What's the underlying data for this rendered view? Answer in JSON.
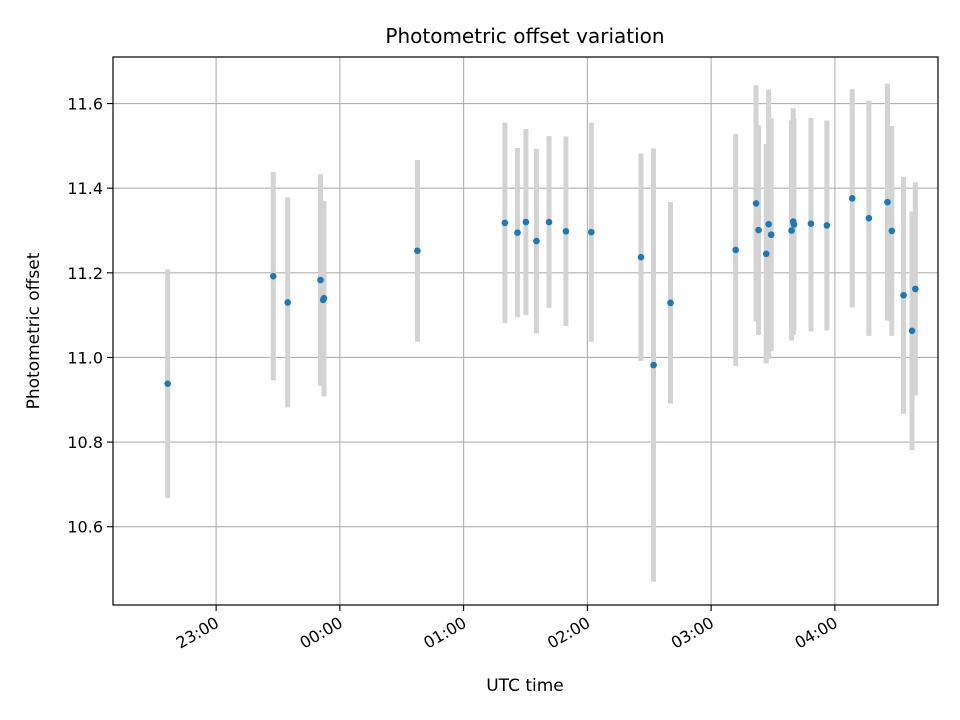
{
  "chart_data": {
    "type": "scatter",
    "title": "Photometric offset variation",
    "xlabel": "UTC time",
    "ylabel": "Photometric offset",
    "x_unit": "minutes since 00:00 UTC",
    "xlim": [
      -110,
      290
    ],
    "ylim": [
      10.415,
      11.71
    ],
    "grid": true,
    "x_ticks": [
      {
        "value": -60,
        "label": "23:00"
      },
      {
        "value": 0,
        "label": "00:00"
      },
      {
        "value": 60,
        "label": "01:00"
      },
      {
        "value": 120,
        "label": "02:00"
      },
      {
        "value": 180,
        "label": "03:00"
      },
      {
        "value": 240,
        "label": "04:00"
      }
    ],
    "y_ticks": [
      {
        "value": 10.6,
        "label": "10.6"
      },
      {
        "value": 10.8,
        "label": "10.8"
      },
      {
        "value": 11.0,
        "label": "11.0"
      },
      {
        "value": 11.2,
        "label": "11.2"
      },
      {
        "value": 11.4,
        "label": "11.4"
      },
      {
        "value": 11.6,
        "label": "11.6"
      }
    ],
    "colors": {
      "point": "#1f77b4",
      "errorbar": "#d3d3d3",
      "grid": "#b0b0b0",
      "axis": "#000000"
    },
    "points": [
      {
        "x": -83.5,
        "y": 10.938,
        "lo": 10.668,
        "hi": 11.208
      },
      {
        "x": -32.3,
        "y": 11.192,
        "lo": 10.946,
        "hi": 11.438
      },
      {
        "x": -25.3,
        "y": 11.13,
        "lo": 10.882,
        "hi": 11.378
      },
      {
        "x": -9.4,
        "y": 11.183,
        "lo": 10.933,
        "hi": 11.433
      },
      {
        "x": -7.7,
        "y": 11.14,
        "lo": 10.908,
        "hi": 11.37
      },
      {
        "x": -8.1,
        "y": 11.136,
        "lo": 10.936,
        "hi": 11.336
      },
      {
        "x": 37.6,
        "y": 11.252,
        "lo": 11.037,
        "hi": 11.467
      },
      {
        "x": 80.0,
        "y": 11.318,
        "lo": 11.081,
        "hi": 11.555
      },
      {
        "x": 86.1,
        "y": 11.295,
        "lo": 11.095,
        "hi": 11.495
      },
      {
        "x": 90.2,
        "y": 11.32,
        "lo": 11.1,
        "hi": 11.54
      },
      {
        "x": 95.3,
        "y": 11.275,
        "lo": 11.057,
        "hi": 11.493
      },
      {
        "x": 101.4,
        "y": 11.32,
        "lo": 11.117,
        "hi": 11.523
      },
      {
        "x": 109.6,
        "y": 11.298,
        "lo": 11.074,
        "hi": 11.522
      },
      {
        "x": 121.9,
        "y": 11.296,
        "lo": 11.037,
        "hi": 11.555
      },
      {
        "x": 146.0,
        "y": 11.237,
        "lo": 10.992,
        "hi": 11.482
      },
      {
        "x": 152.1,
        "y": 10.982,
        "lo": 10.47,
        "hi": 11.494
      },
      {
        "x": 160.3,
        "y": 11.129,
        "lo": 10.891,
        "hi": 11.367
      },
      {
        "x": 191.9,
        "y": 11.254,
        "lo": 10.98,
        "hi": 11.528
      },
      {
        "x": 201.8,
        "y": 11.364,
        "lo": 11.085,
        "hi": 11.643
      },
      {
        "x": 203.0,
        "y": 11.301,
        "lo": 11.053,
        "hi": 11.549
      },
      {
        "x": 206.7,
        "y": 11.245,
        "lo": 10.986,
        "hi": 11.504
      },
      {
        "x": 207.9,
        "y": 11.315,
        "lo": 10.997,
        "hi": 11.633
      },
      {
        "x": 209.1,
        "y": 11.29,
        "lo": 11.015,
        "hi": 11.565
      },
      {
        "x": 219.0,
        "y": 11.3,
        "lo": 11.04,
        "hi": 11.56
      },
      {
        "x": 219.8,
        "y": 11.321,
        "lo": 11.053,
        "hi": 11.589
      },
      {
        "x": 220.2,
        "y": 11.314,
        "lo": 11.064,
        "hi": 11.564
      },
      {
        "x": 228.4,
        "y": 11.316,
        "lo": 11.062,
        "hi": 11.566
      },
      {
        "x": 236.1,
        "y": 11.312,
        "lo": 11.064,
        "hi": 11.56
      },
      {
        "x": 248.4,
        "y": 11.376,
        "lo": 11.118,
        "hi": 11.634
      },
      {
        "x": 256.5,
        "y": 11.329,
        "lo": 11.051,
        "hi": 11.607
      },
      {
        "x": 265.5,
        "y": 11.367,
        "lo": 11.087,
        "hi": 11.647
      },
      {
        "x": 267.6,
        "y": 11.299,
        "lo": 11.051,
        "hi": 11.547
      },
      {
        "x": 273.3,
        "y": 11.147,
        "lo": 10.867,
        "hi": 11.427
      },
      {
        "x": 277.4,
        "y": 11.063,
        "lo": 10.781,
        "hi": 11.345
      },
      {
        "x": 279.0,
        "y": 11.162,
        "lo": 10.91,
        "hi": 11.414
      }
    ]
  }
}
